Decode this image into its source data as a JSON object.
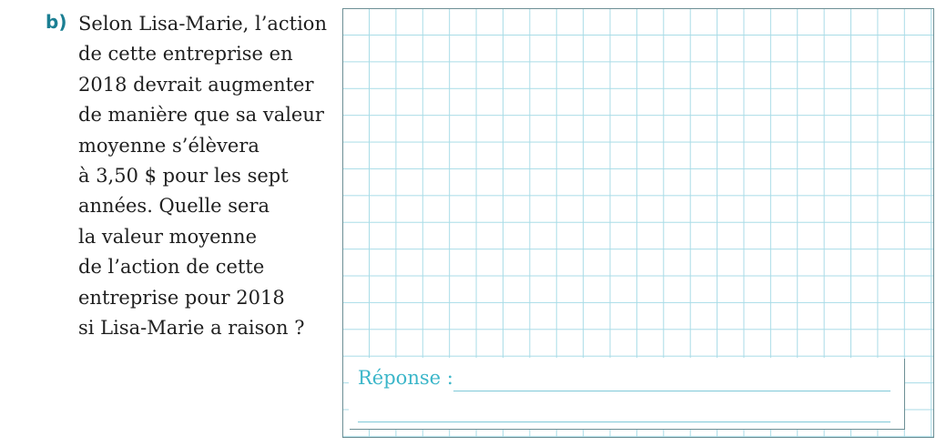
{
  "question": {
    "label": "b)",
    "lines": [
      "Selon Lisa-Marie, l’action",
      "de cette entreprise en",
      "2018 devrait augmenter",
      "de manière que sa valeur",
      "moyenne s’élèvera",
      "à 3,50 $ pour les sept",
      "années. Quelle sera",
      "la valeur moyenne",
      "de l’action de cette",
      "entreprise pour 2018",
      "si Lisa-Marie a raison ?"
    ]
  },
  "answer": {
    "label": "Réponse :"
  },
  "colors": {
    "accent": "#1b7f93",
    "answer_label": "#3bb6c9",
    "grid_line": "#a9dce7",
    "border": "#6d8f95"
  }
}
